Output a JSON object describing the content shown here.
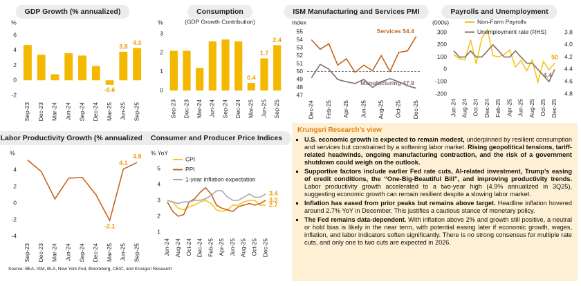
{
  "chart_data": [
    {
      "type": "bar",
      "title": "GDP Growth (% annualized)",
      "y_label": "%",
      "categories": [
        "Sep-23",
        "Dec-23",
        "Mar-24",
        "Jun-24",
        "Sep-24",
        "Dec-24",
        "Mar-25",
        "Jun-25",
        "Sep-25"
      ],
      "values": [
        4.7,
        3.4,
        0.8,
        3.6,
        3.3,
        1.9,
        -0.6,
        3.8,
        4.3
      ],
      "value_labels": [
        null,
        null,
        null,
        null,
        null,
        null,
        "-0.6",
        "3.8",
        "4.3"
      ],
      "color": "#f5b800",
      "ylim": [
        -2,
        6
      ],
      "yticks": [
        -2,
        0,
        2,
        4,
        6
      ]
    },
    {
      "type": "bar",
      "title": "Consumption",
      "subtitle": "(GDP Growth Contribution)",
      "y_label": "%",
      "categories": [
        "Sep-23",
        "Dec-23",
        "Mar-24",
        "Jun-24",
        "Sep-24",
        "Dec-24",
        "Mar-25",
        "Jun-25",
        "Sep-25"
      ],
      "values": [
        2.1,
        2.1,
        1.2,
        2.6,
        2.7,
        2.6,
        0.4,
        1.7,
        2.4
      ],
      "value_labels": [
        null,
        null,
        null,
        null,
        null,
        null,
        "0.4",
        "1.7",
        "2.4"
      ],
      "color": "#f5b800",
      "ylim": [
        0,
        3
      ],
      "yticks": [
        0,
        1,
        2,
        3
      ]
    },
    {
      "type": "line",
      "title": "ISM Manufacturing and Services PMI",
      "y_label": "Index",
      "categories": [
        "Dec-24",
        null,
        "Feb-25",
        null,
        "Apr-25",
        null,
        "Jun-25",
        null,
        "Aug-25",
        null,
        "Oct-25",
        null,
        "Dec-25"
      ],
      "series": [
        {
          "name": "Services",
          "end_label": "Services 54.4",
          "color": "#c0621a",
          "values": [
            54.0,
            52.8,
            53.5,
            50.8,
            51.6,
            49.9,
            50.8,
            50.1,
            52.0,
            50.0,
            52.4,
            52.6,
            54.4
          ]
        },
        {
          "name": "Manufacturing",
          "end_label": "Manufacturing 47.9",
          "color": "#7f6a6f",
          "values": [
            49.2,
            50.9,
            50.3,
            49.0,
            48.7,
            48.5,
            49.0,
            48.0,
            48.7,
            49.1,
            48.7,
            48.2,
            47.9
          ]
        }
      ],
      "hline": 50,
      "ylim": [
        47,
        55
      ],
      "yticks": [
        47,
        48,
        49,
        50,
        51,
        52,
        53,
        54,
        55
      ]
    },
    {
      "type": "line",
      "title": "Payrolls and Unemployment",
      "y_label": "(000s)",
      "categories": [
        "Jun-24",
        null,
        "Aug-24",
        null,
        "Oct-24",
        null,
        "Dec-24",
        null,
        "Feb-25",
        null,
        "Apr-25",
        null,
        "Jun-25",
        null,
        "Aug-25",
        null,
        "Oct-25",
        null,
        "Dec-25"
      ],
      "series": [
        {
          "name": "Non-Farm Payrolls",
          "color": "#f5c518",
          "values": [
            118,
            88,
            78,
            240,
            44,
            255,
            323,
            111,
            102,
            120,
            158,
            19,
            72,
            -13,
            76,
            -105,
            64,
            -4,
            50
          ],
          "value_labels": [
            null,
            null,
            null,
            null,
            null,
            null,
            null,
            null,
            null,
            null,
            null,
            null,
            null,
            null,
            null,
            null,
            null,
            null,
            "50"
          ]
        },
        {
          "name": "Unemployment rate (RHS)",
          "axis": "y2",
          "color": "#8b6d5c",
          "values": [
            4.1,
            4.2,
            4.2,
            4.1,
            4.2,
            4.2,
            4.1,
            4.0,
            4.1,
            4.2,
            4.2,
            4.1,
            4.2,
            4.3,
            4.3,
            4.4,
            4.5,
            4.6,
            4.4
          ],
          "value_labels": [
            null,
            null,
            null,
            null,
            null,
            null,
            null,
            null,
            null,
            null,
            null,
            null,
            null,
            null,
            null,
            null,
            null,
            null,
            "4.4"
          ]
        }
      ],
      "legend": true,
      "ylim": [
        -200,
        300
      ],
      "yticks": [
        -200,
        -100,
        0,
        100,
        200,
        300
      ],
      "y2lim": [
        3.8,
        4.8
      ],
      "y2_inverted": true,
      "y2ticks": [
        3.8,
        {
          "value": 4,
          "label": "4.0"
        },
        4.2,
        4.4,
        4.6,
        4.8
      ]
    },
    {
      "type": "line",
      "title": "Labor Productivity Growth (% annualized)",
      "y_label": "%",
      "categories": [
        "Sep-23",
        "Dec-23",
        "Mar-24",
        "Jun-24",
        "Sep-24",
        "Dec-24",
        "Mar-25",
        "Jun-25",
        "Sep-25"
      ],
      "values": [
        5.2,
        3.8,
        0.5,
        3.0,
        3.1,
        1.0,
        -2.1,
        4.1,
        4.9
      ],
      "value_labels": [
        null,
        null,
        null,
        null,
        null,
        null,
        "-2.1",
        "4.1",
        "4.9"
      ],
      "color": "#c8631f",
      "ylim": [
        -4,
        6
      ],
      "yticks": [
        -4,
        -2,
        0,
        2,
        4
      ]
    },
    {
      "type": "line",
      "title": "Consumer and Producer Price Indices",
      "y_label": "% YoY",
      "categories": [
        "Jun-24",
        null,
        "Aug-24",
        null,
        "Oct-24",
        null,
        "Dec-24",
        null,
        "Feb-25",
        null,
        "Apr-25",
        null,
        "Jun-25",
        null,
        "Aug-25",
        null,
        "Oct-25",
        null,
        "Dec-25"
      ],
      "series": [
        {
          "name": "CPI",
          "color": "#f5c518",
          "values": [
            3.0,
            2.9,
            2.5,
            2.4,
            2.6,
            2.7,
            2.9,
            3.0,
            2.8,
            2.4,
            2.3,
            2.4,
            2.7,
            2.7,
            2.9,
            3.0,
            3.0,
            2.7,
            2.7
          ],
          "value_labels": [
            null,
            null,
            null,
            null,
            null,
            null,
            null,
            null,
            null,
            null,
            null,
            null,
            null,
            null,
            null,
            null,
            null,
            null,
            "2.7"
          ]
        },
        {
          "name": "PPI",
          "color": "#c8631f",
          "values": [
            2.9,
            2.3,
            2.0,
            2.1,
            2.9,
            3.1,
            3.5,
            3.8,
            3.4,
            2.7,
            2.5,
            2.4,
            2.3,
            2.6,
            2.7,
            2.8,
            2.7,
            2.8,
            3.0
          ],
          "value_labels": [
            null,
            null,
            null,
            null,
            null,
            null,
            null,
            null,
            null,
            null,
            null,
            null,
            null,
            null,
            null,
            null,
            null,
            null,
            "3.0"
          ]
        },
        {
          "name": "1-year inflation expectation",
          "color": "#a8a8a8",
          "values": [
            3.0,
            2.9,
            2.8,
            2.9,
            2.9,
            3.0,
            3.0,
            3.1,
            3.3,
            3.6,
            3.6,
            3.2,
            3.0,
            3.0,
            3.2,
            3.4,
            3.2,
            3.2,
            3.4
          ],
          "value_labels": [
            null,
            null,
            null,
            null,
            null,
            null,
            null,
            null,
            null,
            null,
            null,
            null,
            null,
            null,
            null,
            null,
            null,
            null,
            "3.4"
          ]
        }
      ],
      "legend": true,
      "ylim": [
        1,
        5
      ],
      "yticks": [
        1,
        2,
        3,
        4,
        5
      ]
    }
  ],
  "view": {
    "title": "Krungsri Research’s view",
    "bullets": [
      [
        {
          "text": "U.S. economic growth is expected to remain modest,",
          "bold": true
        },
        {
          "text": " underpinned by resilient consumption and services but constrained by a softening labor market. ",
          "bold": false
        },
        {
          "text": "Rising geopolitical tensions, tariff-related headwinds, ongoing manufacturing contraction, and the risk of a government shutdown could weigh on the outlook.",
          "bold": true
        }
      ],
      [
        {
          "text": "Supportive factors include earlier Fed rate cuts, AI-related investment, Trump’s easing of credit conditions, the “One-Big-Beautiful Bill”, and improving productivity trends.",
          "bold": true
        },
        {
          "text": " Labor productivity growth accelerated to a two-year high (4.9% annualized in 3Q25), suggesting economic growth can remain resilient despite a slowing labor market.",
          "bold": false
        }
      ],
      [
        {
          "text": "Inflation has eased from prior peaks but remains above target.",
          "bold": true
        },
        {
          "text": " Headline inflation hovered around 2.7% YoY in December. This justifies a cautious stance of monetary policy.",
          "bold": false
        }
      ],
      [
        {
          "text": "The Fed remains data-dependent.",
          "bold": true
        },
        {
          "text": " With inflation above 2% and growth still positive, a neutral or hold bias is likely in the near term, with potential easing later if economic growth, wages, inflation, and labor indicators soften significantly. There is no strong consensus for multiple rate cuts, and only one to two cuts are expected in 2026.",
          "bold": false
        }
      ]
    ]
  },
  "source": "Source: BEA, ISM, BLS, New York Fed, Bloomberg, CEIC, and Krungsri Research"
}
